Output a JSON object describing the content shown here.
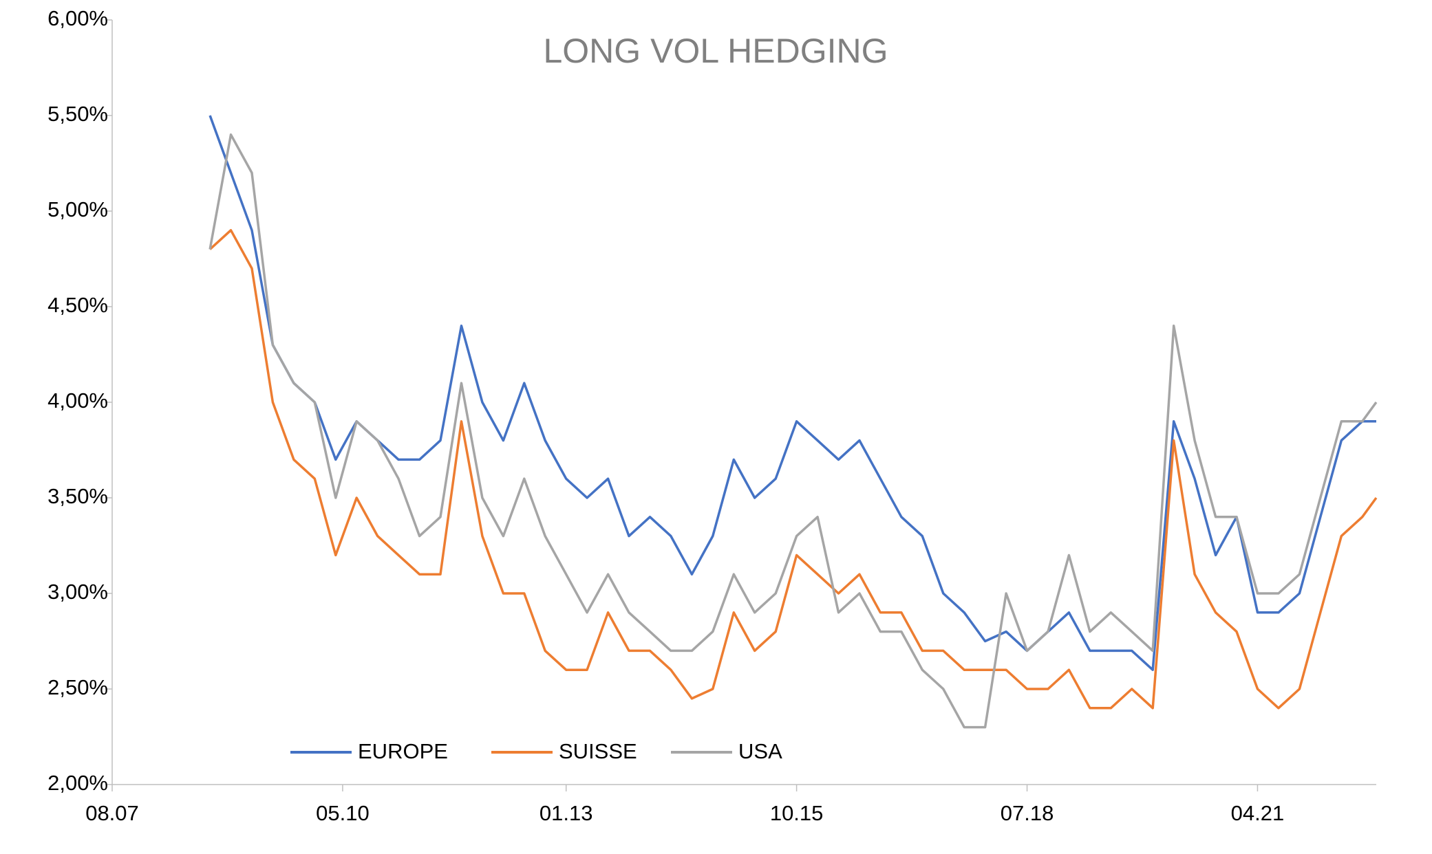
{
  "chart_data": {
    "type": "line",
    "title": "LONG VOL HEDGING",
    "x": [
      "10.08",
      "01.09",
      "04.09",
      "07.09",
      "10.09",
      "01.10",
      "04.10",
      "07.10",
      "10.10",
      "01.11",
      "04.11",
      "07.11",
      "10.11",
      "01.12",
      "04.12",
      "07.12",
      "10.12",
      "01.13",
      "04.13",
      "07.13",
      "10.13",
      "01.14",
      "04.14",
      "07.14",
      "10.14",
      "01.15",
      "04.15",
      "07.15",
      "10.15",
      "01.16",
      "04.16",
      "07.16",
      "10.16",
      "01.17",
      "04.17",
      "07.17",
      "10.17",
      "01.18",
      "04.18",
      "07.18",
      "10.18",
      "01.19",
      "04.19",
      "07.19",
      "10.19",
      "01.20",
      "04.20",
      "07.20",
      "10.20",
      "01.21",
      "04.21",
      "07.21",
      "10.21",
      "01.22",
      "04.22",
      "07.22",
      "09.22"
    ],
    "series": [
      {
        "name": "EUROPE",
        "color": "#4472c4",
        "values": [
          5.5,
          5.2,
          4.9,
          4.3,
          4.1,
          4.0,
          3.7,
          3.9,
          3.8,
          3.7,
          3.7,
          3.8,
          4.4,
          4.0,
          3.8,
          4.1,
          3.8,
          3.6,
          3.5,
          3.6,
          3.3,
          3.4,
          3.3,
          3.1,
          3.3,
          3.7,
          3.5,
          3.6,
          3.9,
          3.8,
          3.7,
          3.8,
          3.6,
          3.4,
          3.3,
          3.0,
          2.9,
          2.75,
          2.8,
          2.7,
          2.8,
          2.9,
          2.7,
          2.7,
          2.7,
          2.6,
          3.9,
          3.6,
          3.2,
          3.4,
          2.9,
          2.9,
          3.0,
          3.4,
          3.8,
          3.9,
          3.9
        ]
      },
      {
        "name": "SUISSE",
        "color": "#ed7d31",
        "values": [
          4.8,
          4.9,
          4.7,
          4.0,
          3.7,
          3.6,
          3.2,
          3.5,
          3.3,
          3.2,
          3.1,
          3.1,
          3.9,
          3.3,
          3.0,
          3.0,
          2.7,
          2.6,
          2.6,
          2.9,
          2.7,
          2.7,
          2.6,
          2.45,
          2.5,
          2.9,
          2.7,
          2.8,
          3.2,
          3.1,
          3.0,
          3.1,
          2.9,
          2.9,
          2.7,
          2.7,
          2.6,
          2.6,
          2.6,
          2.5,
          2.5,
          2.6,
          2.4,
          2.4,
          2.5,
          2.4,
          3.8,
          3.1,
          2.9,
          2.8,
          2.5,
          2.4,
          2.5,
          2.9,
          3.3,
          3.4,
          3.5
        ]
      },
      {
        "name": "USA",
        "color": "#a5a5a5",
        "values": [
          4.8,
          5.4,
          5.2,
          4.3,
          4.1,
          4.0,
          3.5,
          3.9,
          3.8,
          3.6,
          3.3,
          3.4,
          4.1,
          3.5,
          3.3,
          3.6,
          3.3,
          3.1,
          2.9,
          3.1,
          2.9,
          2.8,
          2.7,
          2.7,
          2.8,
          3.1,
          2.9,
          3.0,
          3.3,
          3.4,
          2.9,
          3.0,
          2.8,
          2.8,
          2.6,
          2.5,
          2.3,
          2.3,
          3.0,
          2.7,
          2.8,
          3.2,
          2.8,
          2.9,
          2.8,
          2.7,
          4.4,
          3.8,
          3.4,
          3.4,
          3.0,
          3.0,
          3.1,
          3.5,
          3.9,
          3.9,
          4.0
        ]
      }
    ],
    "xlim": [
      "08.07",
      "09.22"
    ],
    "xticks": [
      "08.07",
      "05.10",
      "01.13",
      "10.15",
      "07.18",
      "04.21"
    ],
    "ylim": [
      2,
      6
    ],
    "yticks": [
      {
        "value": 2,
        "label": "2,00%"
      },
      {
        "value": 2.5,
        "label": "2,50%"
      },
      {
        "value": 3,
        "label": "3,00%"
      },
      {
        "value": 3.5,
        "label": "3,50%"
      },
      {
        "value": 4,
        "label": "4,00%"
      },
      {
        "value": 4.5,
        "label": "4,50%"
      },
      {
        "value": 5,
        "label": "5,00%"
      },
      {
        "value": 5.5,
        "label": "5,50%"
      },
      {
        "value": 6,
        "label": "6,00%"
      }
    ],
    "grid": false,
    "legend": "bottom-left"
  }
}
